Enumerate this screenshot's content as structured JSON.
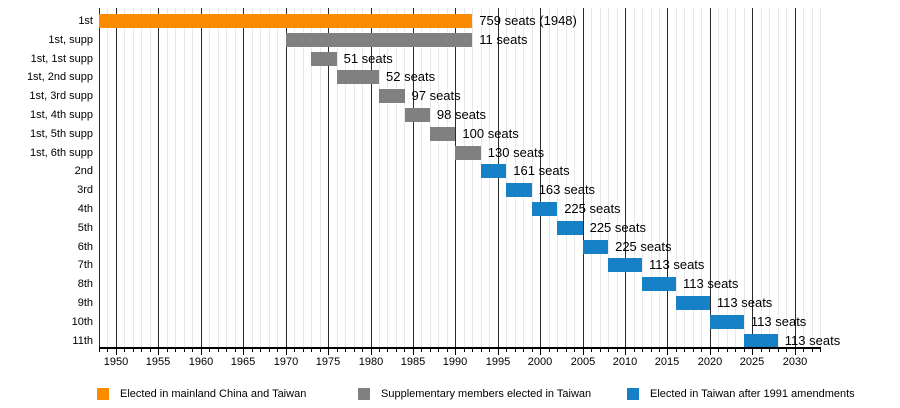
{
  "chart_data": {
    "type": "bar",
    "subtype": "horizontal-gantt-timeline",
    "title": "",
    "xlabel": "",
    "ylabel": "",
    "x_axis": {
      "min": 1948,
      "max": 2033,
      "major_ticks": [
        1950,
        1955,
        1960,
        1965,
        1970,
        1975,
        1980,
        1985,
        1990,
        1995,
        2000,
        2005,
        2010,
        2015,
        2020,
        2025,
        2030
      ],
      "minor_tick_interval": 1,
      "grid": true
    },
    "rows": [
      {
        "label": "1st",
        "start": 1948,
        "end": 1992,
        "seats_label": "759 seats (1948)",
        "series": "mainland"
      },
      {
        "label": "1st, supp",
        "start": 1970,
        "end": 1992,
        "seats_label": "11 seats",
        "series": "supplementary"
      },
      {
        "label": "1st, 1st supp",
        "start": 1973,
        "end": 1976,
        "seats_label": "51 seats",
        "series": "supplementary"
      },
      {
        "label": "1st, 2nd supp",
        "start": 1976,
        "end": 1981,
        "seats_label": "52 seats",
        "series": "supplementary"
      },
      {
        "label": "1st, 3rd supp",
        "start": 1981,
        "end": 1984,
        "seats_label": "97 seats",
        "series": "supplementary"
      },
      {
        "label": "1st, 4th supp",
        "start": 1984,
        "end": 1987,
        "seats_label": "98 seats",
        "series": "supplementary"
      },
      {
        "label": "1st, 5th supp",
        "start": 1987,
        "end": 1990,
        "seats_label": "100 seats",
        "series": "supplementary"
      },
      {
        "label": "1st, 6th supp",
        "start": 1990,
        "end": 1993,
        "seats_label": "130 seats",
        "series": "supplementary"
      },
      {
        "label": "2nd",
        "start": 1993,
        "end": 1996,
        "seats_label": "161 seats",
        "series": "post1991"
      },
      {
        "label": "3rd",
        "start": 1996,
        "end": 1999,
        "seats_label": "163 seats",
        "series": "post1991"
      },
      {
        "label": "4th",
        "start": 1999,
        "end": 2002,
        "seats_label": "225 seats",
        "series": "post1991"
      },
      {
        "label": "5th",
        "start": 2002,
        "end": 2005,
        "seats_label": "225 seats",
        "series": "post1991"
      },
      {
        "label": "6th",
        "start": 2005,
        "end": 2008,
        "seats_label": "225 seats",
        "series": "post1991"
      },
      {
        "label": "7th",
        "start": 2008,
        "end": 2012,
        "seats_label": "113 seats",
        "series": "post1991"
      },
      {
        "label": "8th",
        "start": 2012,
        "end": 2016,
        "seats_label": "113 seats",
        "series": "post1991"
      },
      {
        "label": "9th",
        "start": 2016,
        "end": 2020,
        "seats_label": "113 seats",
        "series": "post1991"
      },
      {
        "label": "10th",
        "start": 2020,
        "end": 2024,
        "seats_label": "113 seats",
        "series": "post1991"
      },
      {
        "label": "11th",
        "start": 2024,
        "end": 2028,
        "seats_label": "113 seats",
        "series": "post1991"
      }
    ],
    "series_colors": {
      "mainland": "#FB8B00",
      "supplementary": "#808080",
      "post1991": "#1681C7"
    },
    "legend": [
      {
        "key": "mainland",
        "label": "Elected in mainland China and Taiwan",
        "color": "#FB8B00"
      },
      {
        "key": "supplementary",
        "label": "Supplementary members elected in Taiwan",
        "color": "#808080"
      },
      {
        "key": "post1991",
        "label": "Elected in Taiwan after 1991 amendments",
        "color": "#1681C7"
      }
    ],
    "legend_position": "bottom"
  }
}
